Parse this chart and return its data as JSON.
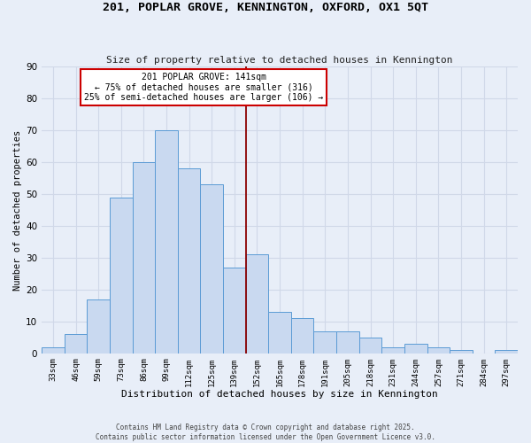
{
  "title": "201, POPLAR GROVE, KENNINGTON, OXFORD, OX1 5QT",
  "subtitle": "Size of property relative to detached houses in Kennington",
  "xlabel": "Distribution of detached houses by size in Kennington",
  "ylabel": "Number of detached properties",
  "bar_labels": [
    "33sqm",
    "46sqm",
    "59sqm",
    "73sqm",
    "86sqm",
    "99sqm",
    "112sqm",
    "125sqm",
    "139sqm",
    "152sqm",
    "165sqm",
    "178sqm",
    "191sqm",
    "205sqm",
    "218sqm",
    "231sqm",
    "244sqm",
    "257sqm",
    "271sqm",
    "284sqm",
    "297sqm"
  ],
  "bar_heights": [
    2,
    6,
    17,
    49,
    60,
    70,
    58,
    53,
    27,
    31,
    13,
    11,
    7,
    7,
    5,
    2,
    3,
    2,
    1,
    0,
    1
  ],
  "bar_color": "#c9d9f0",
  "bar_edge_color": "#5b9bd5",
  "vline_x_idx": 8.5,
  "vline_color": "#8b0000",
  "annotation_text": "201 POPLAR GROVE: 141sqm\n← 75% of detached houses are smaller (316)\n25% of semi-detached houses are larger (106) →",
  "annotation_box_color": "#ffffff",
  "annotation_box_edge_color": "#cc0000",
  "ylim": [
    0,
    90
  ],
  "yticks": [
    0,
    10,
    20,
    30,
    40,
    50,
    60,
    70,
    80,
    90
  ],
  "grid_color": "#d0d8e8",
  "background_color": "#e8eef8",
  "footer_line1": "Contains HM Land Registry data © Crown copyright and database right 2025.",
  "footer_line2": "Contains public sector information licensed under the Open Government Licence v3.0."
}
